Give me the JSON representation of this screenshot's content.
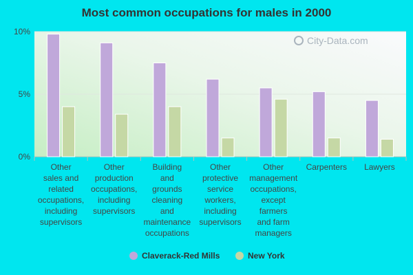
{
  "chart_data": {
    "type": "bar",
    "title": "Most common occupations for males in 2000",
    "xlabel": "",
    "ylabel": "",
    "ylim": [
      0,
      10
    ],
    "yticks": [
      0,
      5,
      10
    ],
    "ytick_labels": [
      "0%",
      "5%",
      "10%"
    ],
    "categories": [
      "Other sales and related occupations, including supervisors",
      "Other production occupations, including supervisors",
      "Building and grounds cleaning and maintenance occupations",
      "Other protective service workers, including supervisors",
      "Other management occupations, except farmers and farm managers",
      "Carpenters",
      "Lawyers"
    ],
    "category_lines": [
      [
        "Other",
        "sales and",
        "related",
        "occupations,",
        "including",
        "supervisors"
      ],
      [
        "Other",
        "production",
        "occupations,",
        "including",
        "supervisors"
      ],
      [
        "Building",
        "and",
        "grounds",
        "cleaning",
        "and",
        "maintenance",
        "occupations"
      ],
      [
        "Other",
        "protective",
        "service",
        "workers,",
        "including",
        "supervisors"
      ],
      [
        "Other",
        "management",
        "occupations,",
        "except",
        "farmers",
        "and farm",
        "managers"
      ],
      [
        "Carpenters"
      ],
      [
        "Lawyers"
      ]
    ],
    "series": [
      {
        "name": "Claverack-Red Mills",
        "color": "#c0a8da",
        "values": [
          9.8,
          9.1,
          7.5,
          6.2,
          5.5,
          5.2,
          4.5
        ]
      },
      {
        "name": "New York",
        "color": "#c5d8a5",
        "values": [
          4.0,
          3.4,
          4.0,
          1.5,
          4.6,
          1.5,
          1.4
        ]
      }
    ],
    "legend_position": "bottom"
  },
  "watermark": "City-Data.com"
}
